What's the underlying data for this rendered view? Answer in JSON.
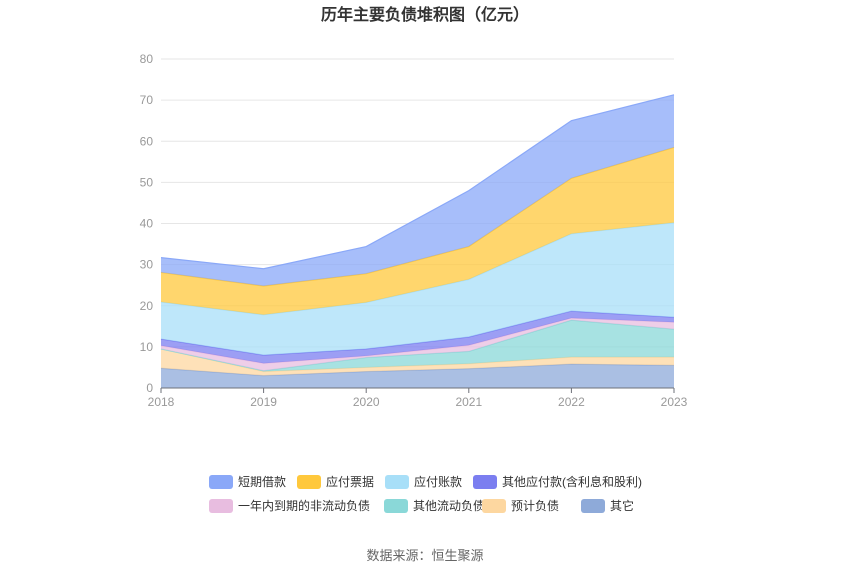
{
  "chart_data": {
    "type": "area",
    "stacked": true,
    "title": "历年主要负债堆积图（亿元）",
    "source": "数据来源：恒生聚源",
    "x": [
      "2018",
      "2019",
      "2020",
      "2021",
      "2022",
      "2023"
    ],
    "ylim": [
      0,
      80
    ],
    "yticks": [
      0,
      10,
      20,
      30,
      40,
      50,
      60,
      70,
      80
    ],
    "grid": true,
    "legend_position": "bottom",
    "series": [
      {
        "name": "其它",
        "color": "#8eaad9",
        "values": [
          4.8,
          3.0,
          4.0,
          4.7,
          5.8,
          5.5
        ]
      },
      {
        "name": "预计负债",
        "color": "#fdd7a0",
        "values": [
          4.7,
          1.0,
          1.0,
          1.2,
          1.7,
          2.0
        ]
      },
      {
        "name": "其他流动负债",
        "color": "#8ad8d8",
        "values": [
          0.0,
          0.2,
          2.4,
          3.0,
          9.0,
          6.8
        ]
      },
      {
        "name": "一年内到期的非流动负债",
        "color": "#e8bde0",
        "values": [
          0.8,
          1.8,
          0.4,
          1.5,
          0.5,
          1.7
        ]
      },
      {
        "name": "其他应付款(含利息和股利)",
        "color": "#7b7ef0",
        "values": [
          1.6,
          2.0,
          1.7,
          2.0,
          1.7,
          1.2
        ]
      },
      {
        "name": "应付账款",
        "color": "#a8dff8",
        "values": [
          9.0,
          9.8,
          11.3,
          14.0,
          18.8,
          23.0
        ]
      },
      {
        "name": "应付票据",
        "color": "#ffc83c",
        "values": [
          7.2,
          7.0,
          7.0,
          8.0,
          13.5,
          18.3
        ]
      },
      {
        "name": "短期借款",
        "color": "#8aa8f8",
        "values": [
          3.6,
          4.2,
          6.6,
          13.6,
          14.0,
          12.8
        ]
      }
    ],
    "legend_order": [
      "短期借款",
      "应付票据",
      "应付账款",
      "其他应付款(含利息和股利)",
      "一年内到期的非流动负债",
      "其他流动负债",
      "预计负债",
      "其它"
    ]
  }
}
